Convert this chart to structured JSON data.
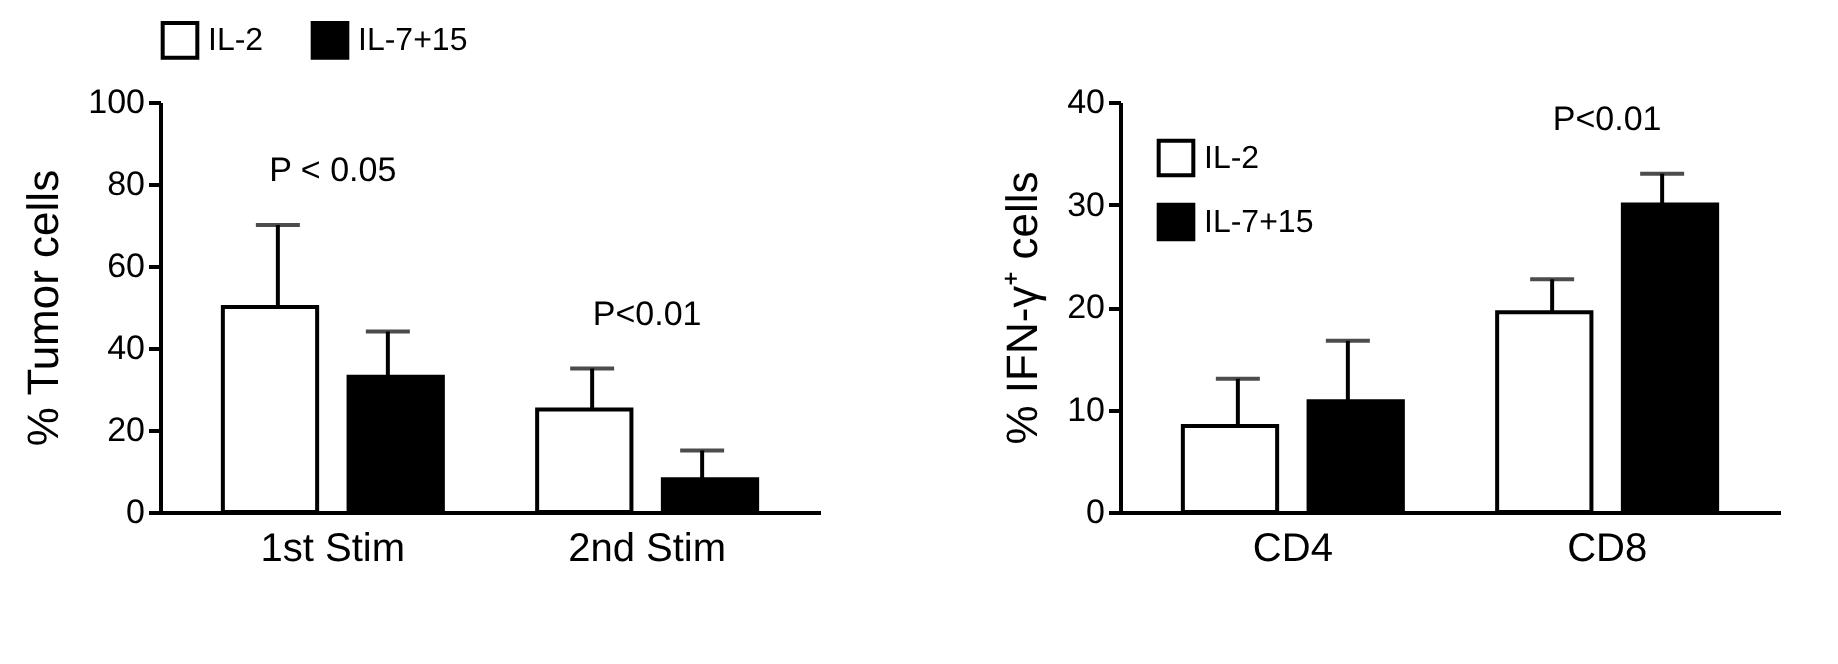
{
  "chart_data": [
    {
      "type": "bar",
      "ylabel": "% Tumor cells",
      "categories": [
        "1st Stim",
        "2nd Stim"
      ],
      "ylim": [
        0,
        100
      ],
      "yticks": [
        0,
        20,
        40,
        60,
        80,
        100
      ],
      "legend": "top",
      "series": [
        {
          "name": "IL-2",
          "color": "#ffffff",
          "values": [
            50,
            25
          ],
          "errors": [
            [
              50,
              70
            ],
            [
              25,
              35
            ]
          ]
        },
        {
          "name": "IL-7+15",
          "color": "#000000",
          "values": [
            33,
            8
          ],
          "errors": [
            [
              33,
              44
            ],
            [
              8,
              15
            ]
          ]
        }
      ],
      "annotations": [
        "P < 0.05",
        "P<0.01"
      ]
    },
    {
      "type": "bar",
      "ylabel": "% IFN-γ⁺ cells",
      "categories": [
        "CD4",
        "CD8"
      ],
      "ylim": [
        0,
        40
      ],
      "yticks": [
        0,
        10,
        20,
        30,
        40
      ],
      "legend": "top left",
      "series": [
        {
          "name": "IL-2",
          "color": "#ffffff",
          "values": [
            8.4,
            19.5
          ],
          "errors": [
            [
              8.4,
              13
            ],
            [
              19.5,
              22.7
            ]
          ]
        },
        {
          "name": "IL-7+15",
          "color": "#000000",
          "values": [
            10.8,
            30
          ],
          "errors": [
            [
              10.8,
              16.7
            ],
            [
              30,
              33
            ]
          ]
        }
      ],
      "annotations": [
        "P<0.01"
      ]
    }
  ]
}
